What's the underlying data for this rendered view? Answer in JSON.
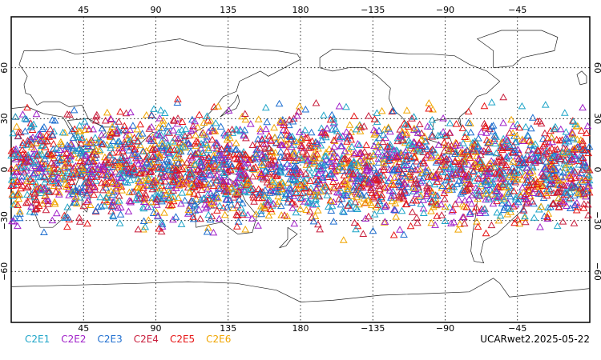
{
  "chart_data": {
    "type": "scatter",
    "projection": "cylindrical-equidistant",
    "xlim": [
      0,
      360
    ],
    "ylim": [
      -90,
      90
    ],
    "lon_ticks": [
      {
        "value": 45,
        "label": "45"
      },
      {
        "value": 90,
        "label": "90"
      },
      {
        "value": 135,
        "label": "135"
      },
      {
        "value": 180,
        "label": "180"
      },
      {
        "value": 225,
        "label": "−135"
      },
      {
        "value": 270,
        "label": "−90"
      },
      {
        "value": 315,
        "label": "−45"
      }
    ],
    "lat_ticks": [
      {
        "value": 60,
        "label": "60"
      },
      {
        "value": 30,
        "label": "30"
      },
      {
        "value": 0,
        "label": "0"
      },
      {
        "value": -30,
        "label": "−30"
      },
      {
        "value": -60,
        "label": "−60"
      }
    ],
    "grid": true,
    "marker": "open-triangle",
    "data_lat_range": [
      -45,
      45
    ],
    "series": [
      {
        "name": "C2E1",
        "color": "#1fa5c8"
      },
      {
        "name": "C2E2",
        "color": "#a020c8"
      },
      {
        "name": "C2E3",
        "color": "#1f6fd0"
      },
      {
        "name": "C2E4",
        "color": "#c81e3c"
      },
      {
        "name": "C2E5",
        "color": "#e61414"
      },
      {
        "name": "C2E6",
        "color": "#f0a500"
      }
    ]
  },
  "footer": {
    "stamp": "UCARwet2.2025-05-22"
  }
}
